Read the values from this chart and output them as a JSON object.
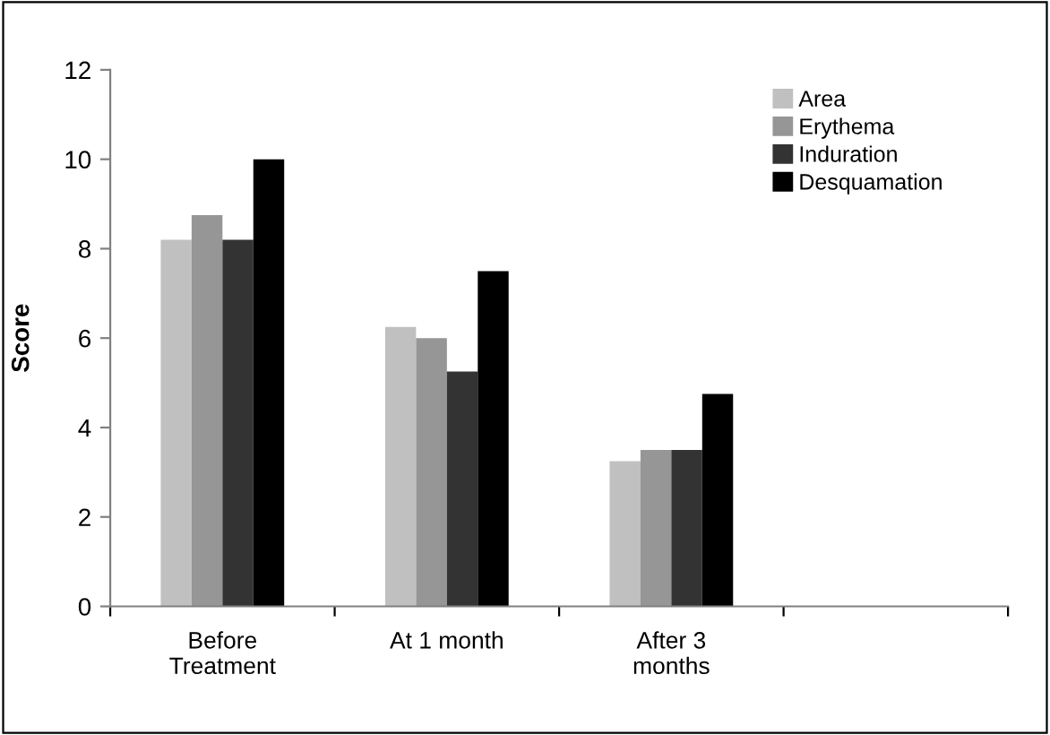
{
  "chart_data": {
    "type": "bar",
    "ylabel": "Score",
    "categories": [
      "Before\nTreatment",
      "At 1 month",
      "After 3\nmonths",
      null
    ],
    "series": [
      {
        "name": "Area",
        "color": "#c0c0c0",
        "values": [
          8.2,
          6.25,
          3.25,
          null
        ]
      },
      {
        "name": "Erythema",
        "color": "#969696",
        "values": [
          8.75,
          6.0,
          3.5,
          null
        ]
      },
      {
        "name": "Induration",
        "color": "#333333",
        "values": [
          8.2,
          5.25,
          3.5,
          null
        ]
      },
      {
        "name": "Desquamation",
        "color": "#000000",
        "values": [
          10.0,
          7.5,
          4.75,
          null
        ]
      }
    ],
    "ylim": [
      0,
      12
    ],
    "yticks": [
      0,
      2,
      4,
      6,
      8,
      10,
      12
    ],
    "grid": false,
    "legend": "top right"
  }
}
